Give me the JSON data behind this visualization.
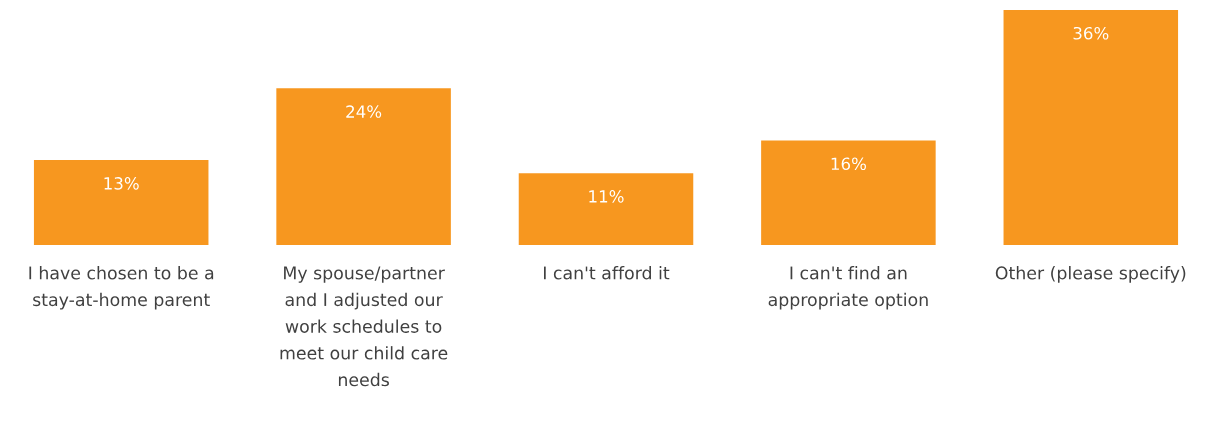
{
  "chart_data": {
    "type": "bar",
    "categories": [
      "I have chosen to be a stay-at-home parent",
      "My spouse/partner and I adjusted our work schedules to meet our child care needs",
      "I can't afford it",
      "I can't find an appropriate option",
      "Other (please specify)"
    ],
    "values": [
      13,
      24,
      11,
      16,
      36
    ],
    "color": "#f7971f",
    "value_labels": [
      "13%",
      "24%",
      "11%",
      "16%",
      "36%"
    ],
    "ylim": [
      0,
      36
    ]
  }
}
